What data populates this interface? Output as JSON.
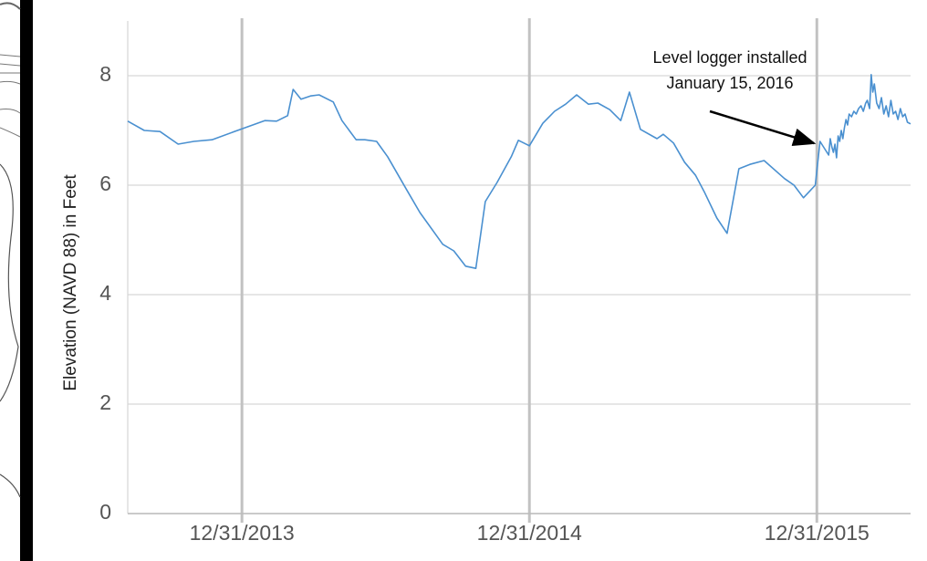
{
  "chart_data": {
    "type": "line",
    "ylabel": "Elevation (NAVD 88) in Feet",
    "annotation": [
      "Level logger installed",
      "January 15, 2016"
    ],
    "color": "#4a90d0",
    "grid": true,
    "xlim": [
      "2013-08-08",
      "2016-04-28"
    ],
    "xticks": [
      {
        "value": "2013-12-31",
        "label": "12/31/2013"
      },
      {
        "value": "2014-12-31",
        "label": "12/31/2014"
      },
      {
        "value": "2015-12-31",
        "label": "12/31/2015"
      }
    ],
    "ylim": [
      0,
      9
    ],
    "yticks": [
      0,
      2,
      4,
      6,
      8
    ],
    "x": [
      "2013-08-08",
      "2013-08-29",
      "2013-09-18",
      "2013-10-11",
      "2013-10-31",
      "2013-11-23",
      "2013-12-31",
      "2014-01-29",
      "2014-02-13",
      "2014-02-27",
      "2014-03-06",
      "2014-03-16",
      "2014-03-28",
      "2014-04-08",
      "2014-04-26",
      "2014-05-07",
      "2014-05-25",
      "2014-06-05",
      "2014-06-20",
      "2014-07-04",
      "2014-07-28",
      "2014-08-14",
      "2014-09-12",
      "2014-09-26",
      "2014-10-11",
      "2014-10-24",
      "2014-11-05",
      "2014-11-20",
      "2014-12-08",
      "2014-12-17",
      "2014-12-31",
      "2015-01-17",
      "2015-02-01",
      "2015-02-15",
      "2015-03-01",
      "2015-03-16",
      "2015-03-28",
      "2015-04-12",
      "2015-04-26",
      "2015-05-07",
      "2015-05-21",
      "2015-06-11",
      "2015-06-19",
      "2015-07-02",
      "2015-07-16",
      "2015-07-30",
      "2015-08-10",
      "2015-08-26",
      "2015-09-08",
      "2015-09-23",
      "2015-10-07",
      "2015-10-25",
      "2015-11-20",
      "2015-12-02",
      "2015-12-14",
      "2015-12-29",
      "2016-01-04",
      "2016-01-15",
      "2016-01-17",
      "2016-01-19",
      "2016-01-21",
      "2016-01-23",
      "2016-01-25",
      "2016-01-27",
      "2016-01-29",
      "2016-01-31",
      "2016-02-02",
      "2016-02-04",
      "2016-02-06",
      "2016-02-08",
      "2016-02-10",
      "2016-02-13",
      "2016-02-16",
      "2016-02-19",
      "2016-02-22",
      "2016-02-25",
      "2016-02-28",
      "2016-03-02",
      "2016-03-04",
      "2016-03-07",
      "2016-03-09",
      "2016-03-11",
      "2016-03-13",
      "2016-03-16",
      "2016-03-19",
      "2016-03-22",
      "2016-03-25",
      "2016-03-28",
      "2016-03-31",
      "2016-04-03",
      "2016-04-06",
      "2016-04-09",
      "2016-04-12",
      "2016-04-15",
      "2016-04-18",
      "2016-04-21",
      "2016-04-24",
      "2016-04-28"
    ],
    "values": [
      7.17,
      7.0,
      6.98,
      6.75,
      6.8,
      6.83,
      7.03,
      7.18,
      7.17,
      7.27,
      7.75,
      7.57,
      7.63,
      7.65,
      7.52,
      7.18,
      6.83,
      6.83,
      6.8,
      6.52,
      5.92,
      5.5,
      4.92,
      4.8,
      4.52,
      4.48,
      5.7,
      6.05,
      6.52,
      6.82,
      6.72,
      7.13,
      7.35,
      7.48,
      7.65,
      7.48,
      7.5,
      7.38,
      7.18,
      7.7,
      7.02,
      6.85,
      6.93,
      6.77,
      6.42,
      6.18,
      5.88,
      5.4,
      5.12,
      6.3,
      6.38,
      6.45,
      6.12,
      6.0,
      5.77,
      6.0,
      6.8,
      6.55,
      6.85,
      6.7,
      6.6,
      6.75,
      6.5,
      6.9,
      6.8,
      7.0,
      6.85,
      7.05,
      7.2,
      7.1,
      7.3,
      7.25,
      7.35,
      7.3,
      7.4,
      7.45,
      7.35,
      7.5,
      7.55,
      7.4,
      8.02,
      7.7,
      7.85,
      7.5,
      7.4,
      7.6,
      7.3,
      7.45,
      7.25,
      7.55,
      7.3,
      7.35,
      7.2,
      7.4,
      7.25,
      7.3,
      7.15,
      7.12
    ]
  }
}
